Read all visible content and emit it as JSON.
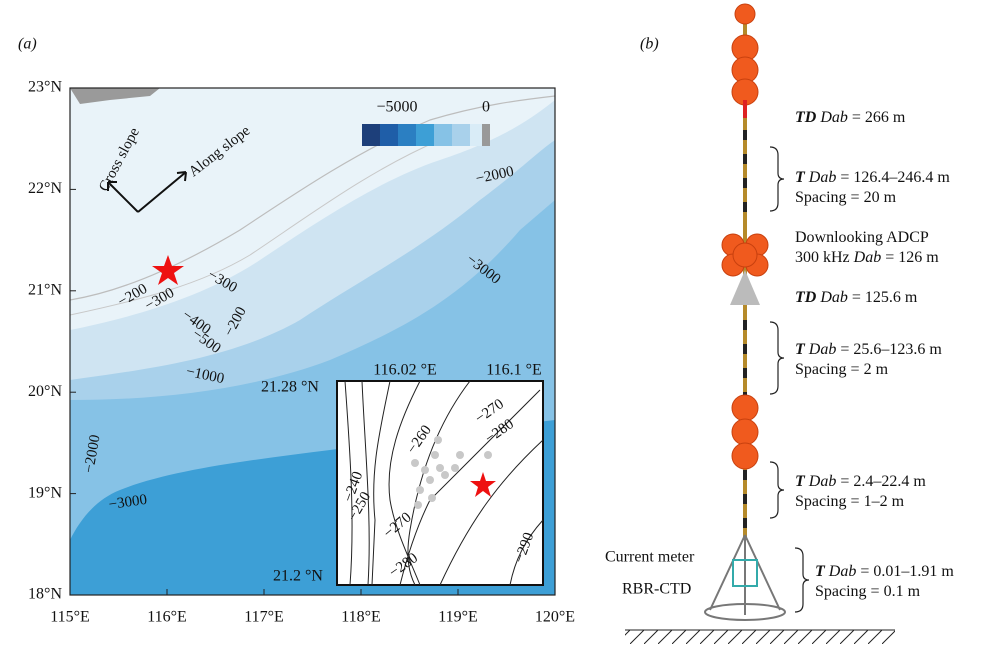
{
  "panel_a": {
    "label": "(a)",
    "y_labels": [
      "23°N",
      "22°N",
      "21°N",
      "20°N",
      "19°N",
      "18°N"
    ],
    "x_labels": [
      "115°E",
      "116°E",
      "117°E",
      "118°E",
      "119°E",
      "120°E"
    ],
    "colorbar": {
      "min_label": "−5000",
      "max_label": "0"
    },
    "directions": [
      "Cross slope",
      "Along slope"
    ],
    "contour_labels": [
      "−2000",
      "−3000",
      "−200",
      "−300",
      "−300",
      "−200",
      "−400",
      "−500",
      "−1000",
      "−2000",
      "−3000"
    ],
    "inset": {
      "lon_labels": [
        "116.02 °E",
        "116.1 °E"
      ],
      "lat_labels": [
        "21.28 °N",
        "21.2 °N"
      ],
      "contour_labels": [
        "−260",
        "−270",
        "−280",
        "−290",
        "−240",
        "−250",
        "−270",
        "−280"
      ]
    }
  },
  "panel_b": {
    "label": "(b)",
    "annotations": [
      {
        "lines": [
          {
            "var": "TD",
            "param": "Dab",
            "text": "= 266 m"
          }
        ]
      },
      {
        "lines": [
          {
            "var": "T",
            "param": "Dab",
            "text": "= 126.4–246.4 m"
          },
          {
            "text": "Spacing = 20 m"
          }
        ]
      },
      {
        "lines": [
          {
            "text": "Downlooking ADCP"
          },
          {
            "prefix": "300 kHz",
            "param": "Dab",
            "text": "= 126 m"
          }
        ]
      },
      {
        "lines": [
          {
            "var": "TD",
            "param": "Dab",
            "text": "= 125.6 m"
          }
        ]
      },
      {
        "lines": [
          {
            "var": "T",
            "param": "Dab",
            "text": "= 25.6–123.6 m"
          },
          {
            "text": "Spacing = 2 m"
          }
        ]
      },
      {
        "lines": [
          {
            "var": "T",
            "param": "Dab",
            "text": "= 2.4–22.4 m"
          },
          {
            "text": "Spacing = 1–2 m"
          }
        ]
      },
      {
        "lines": [
          {
            "var": "T",
            "param": "Dab",
            "text": "= 0.01–1.91 m"
          },
          {
            "text": "Spacing = 0.1 m"
          }
        ]
      }
    ],
    "instruments": [
      "Current meter",
      "RBR-CTD"
    ]
  }
}
